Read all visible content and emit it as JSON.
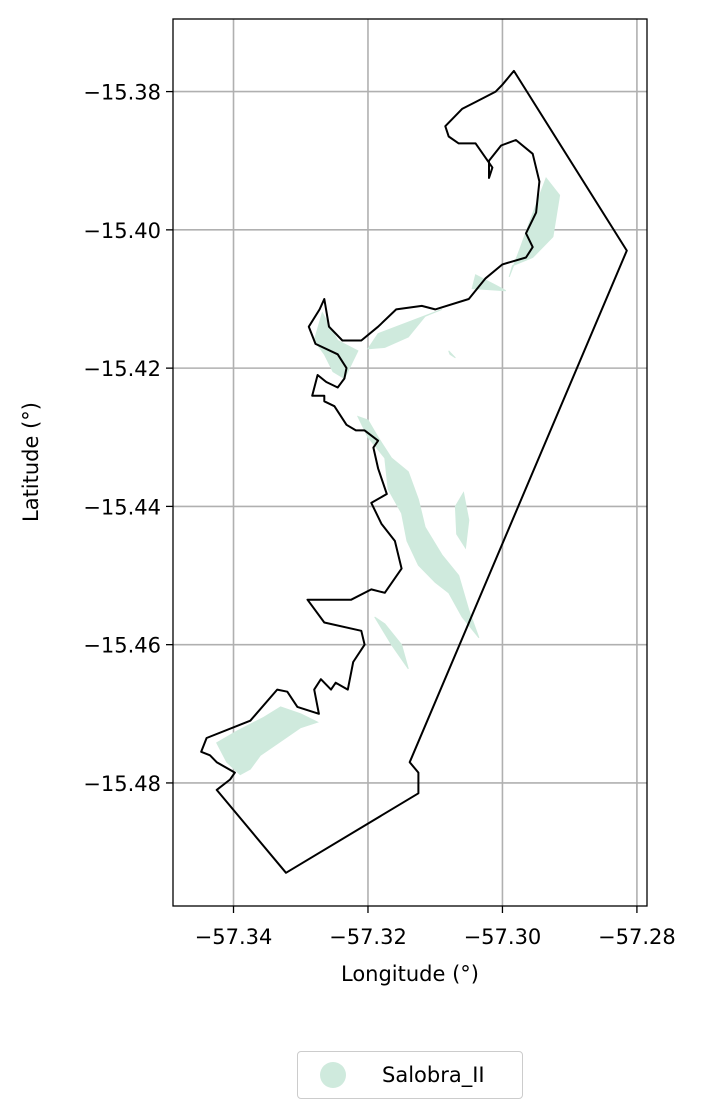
{
  "chart_data": {
    "type": "map",
    "xlabel": "Longitude (°)",
    "ylabel": "Latitude (°)",
    "xlim": [
      -57.349,
      -57.2785
    ],
    "ylim": [
      -15.4978,
      -15.3695
    ],
    "x_ticks": [
      -57.34,
      -57.32,
      -57.3,
      -57.28
    ],
    "x_tick_labels": [
      "−57.34",
      "−57.32",
      "−57.30",
      "−57.28"
    ],
    "y_ticks": [
      -15.38,
      -15.4,
      -15.42,
      -15.44,
      -15.46,
      -15.48
    ],
    "y_tick_labels": [
      "−15.38",
      "−15.40",
      "−15.42",
      "−15.44",
      "−15.46",
      "−15.48"
    ],
    "grid": true,
    "legend_placement": "bottom-center",
    "series": [
      {
        "name": "Salobra_II",
        "color": "#cfeadd",
        "kind": "polygon-fill"
      }
    ],
    "boundary_color": "#000000",
    "outline_polygon": [
      [
        -57.2983,
        -15.377
      ],
      [
        -57.2815,
        -15.403
      ],
      [
        -57.3138,
        -15.477
      ],
      [
        -57.3125,
        -15.4785
      ],
      [
        -57.3125,
        -15.4815
      ],
      [
        -57.3322,
        -15.493
      ],
      [
        -57.3425,
        -15.481
      ],
      [
        -57.3405,
        -15.4795
      ],
      [
        -57.3398,
        -15.4785
      ],
      [
        -57.3425,
        -15.477
      ],
      [
        -57.3435,
        -15.476
      ],
      [
        -57.3448,
        -15.4755
      ],
      [
        -57.344,
        -15.4735
      ],
      [
        -57.3375,
        -15.471
      ],
      [
        -57.3335,
        -15.4665
      ],
      [
        -57.332,
        -15.4668
      ],
      [
        -57.3305,
        -15.469
      ],
      [
        -57.3273,
        -15.47
      ],
      [
        -57.328,
        -15.4665
      ],
      [
        -57.327,
        -15.465
      ],
      [
        -57.3255,
        -15.4665
      ],
      [
        -57.3248,
        -15.4655
      ],
      [
        -57.323,
        -15.4665
      ],
      [
        -57.3222,
        -15.4625
      ],
      [
        -57.3205,
        -15.46
      ],
      [
        -57.321,
        -15.458
      ],
      [
        -57.3265,
        -15.4568
      ],
      [
        -57.329,
        -15.4535
      ],
      [
        -57.3225,
        -15.4535
      ],
      [
        -57.3195,
        -15.452
      ],
      [
        -57.3175,
        -15.4525
      ],
      [
        -57.315,
        -15.449
      ],
      [
        -57.316,
        -15.445
      ],
      [
        -57.318,
        -15.4425
      ],
      [
        -57.3195,
        -15.4395
      ],
      [
        -57.3172,
        -15.4382
      ],
      [
        -57.3185,
        -15.4345
      ],
      [
        -57.3192,
        -15.4315
      ],
      [
        -57.3185,
        -15.4305
      ],
      [
        -57.3205,
        -15.429
      ],
      [
        -57.3218,
        -15.429
      ],
      [
        -57.3232,
        -15.4282
      ],
      [
        -57.325,
        -15.4255
      ],
      [
        -57.3265,
        -15.4248
      ],
      [
        -57.3265,
        -15.424
      ],
      [
        -57.3283,
        -15.424
      ],
      [
        -57.3275,
        -15.421
      ],
      [
        -57.3262,
        -15.422
      ],
      [
        -57.3245,
        -15.4228
      ],
      [
        -57.3235,
        -15.4215
      ],
      [
        -57.3232,
        -15.42
      ],
      [
        -57.3245,
        -15.418
      ],
      [
        -57.3278,
        -15.4165
      ],
      [
        -57.3288,
        -15.414
      ],
      [
        -57.3272,
        -15.4115
      ],
      [
        -57.3265,
        -15.41
      ],
      [
        -57.3258,
        -15.414
      ],
      [
        -57.3238,
        -15.416
      ],
      [
        -57.321,
        -15.416
      ],
      [
        -57.3185,
        -15.414
      ],
      [
        -57.3158,
        -15.4115
      ],
      [
        -57.312,
        -15.411
      ],
      [
        -57.31,
        -15.4115
      ],
      [
        -57.305,
        -15.41
      ],
      [
        -57.3025,
        -15.407
      ],
      [
        -57.3,
        -15.405
      ],
      [
        -57.2965,
        -15.404
      ],
      [
        -57.2955,
        -15.4025
      ],
      [
        -57.2965,
        -15.4005
      ],
      [
        -57.295,
        -15.3975
      ],
      [
        -57.2945,
        -15.393
      ],
      [
        -57.2955,
        -15.389
      ],
      [
        -57.298,
        -15.387
      ],
      [
        -57.3002,
        -15.3878
      ],
      [
        -57.302,
        -15.39
      ],
      [
        -57.302,
        -15.3925
      ],
      [
        -57.3015,
        -15.391
      ],
      [
        -57.304,
        -15.3875
      ],
      [
        -57.3065,
        -15.3875
      ],
      [
        -57.308,
        -15.3865
      ],
      [
        -57.3085,
        -15.385
      ],
      [
        -57.306,
        -15.3825
      ],
      [
        -57.304,
        -15.3815
      ],
      [
        -57.301,
        -15.38
      ],
      [
        -57.3,
        -15.379
      ],
      [
        -57.2983,
        -15.377
      ]
    ],
    "filled_regions": [
      [
        [
          -57.2935,
          -15.3925
        ],
        [
          -57.2915,
          -15.395
        ],
        [
          -57.2925,
          -15.401
        ],
        [
          -57.2955,
          -15.404
        ],
        [
          -57.2985,
          -15.4052
        ],
        [
          -57.299,
          -15.4068
        ],
        [
          -57.2975,
          -15.403
        ],
        [
          -57.296,
          -15.399
        ]
      ],
      [
        [
          -57.304,
          -15.4065
        ],
        [
          -57.301,
          -15.408
        ],
        [
          -57.2995,
          -15.4088
        ],
        [
          -57.3045,
          -15.4085
        ]
      ],
      [
        [
          -57.309,
          -15.4115
        ],
        [
          -57.3115,
          -15.4125
        ],
        [
          -57.314,
          -15.4155
        ],
        [
          -57.3175,
          -15.417
        ],
        [
          -57.32,
          -15.4172
        ],
        [
          -57.3185,
          -15.415
        ]
      ],
      [
        [
          -57.3268,
          -15.412
        ],
        [
          -57.3245,
          -15.416
        ],
        [
          -57.3215,
          -15.4175
        ],
        [
          -57.3235,
          -15.4215
        ],
        [
          -57.3252,
          -15.4205
        ],
        [
          -57.3265,
          -15.418
        ],
        [
          -57.328,
          -15.416
        ]
      ],
      [
        [
          -57.3215,
          -15.427
        ],
        [
          -57.32,
          -15.43
        ],
        [
          -57.3175,
          -15.433
        ],
        [
          -57.317,
          -15.4375
        ],
        [
          -57.315,
          -15.441
        ],
        [
          -57.3142,
          -15.445
        ],
        [
          -57.3125,
          -15.4485
        ],
        [
          -57.31,
          -15.451
        ],
        [
          -57.308,
          -15.4525
        ],
        [
          -57.306,
          -15.456
        ],
        [
          -57.3035,
          -15.459
        ],
        [
          -57.305,
          -15.455
        ],
        [
          -57.3065,
          -15.45
        ],
        [
          -57.309,
          -15.447
        ],
        [
          -57.3115,
          -15.443
        ],
        [
          -57.3125,
          -15.439
        ],
        [
          -57.314,
          -15.435
        ],
        [
          -57.3165,
          -15.433
        ],
        [
          -57.3185,
          -15.43
        ],
        [
          -57.32,
          -15.4275
        ]
      ],
      [
        [
          -57.3058,
          -15.438
        ],
        [
          -57.305,
          -15.442
        ],
        [
          -57.3055,
          -15.446
        ],
        [
          -57.3068,
          -15.444
        ],
        [
          -57.307,
          -15.44
        ]
      ],
      [
        [
          -57.319,
          -15.456
        ],
        [
          -57.3165,
          -15.46
        ],
        [
          -57.314,
          -15.4635
        ],
        [
          -57.315,
          -15.46
        ],
        [
          -57.3175,
          -15.457
        ]
      ],
      [
        [
          -57.333,
          -15.469
        ],
        [
          -57.3355,
          -15.4705
        ],
        [
          -57.3395,
          -15.4725
        ],
        [
          -57.3425,
          -15.4742
        ],
        [
          -57.341,
          -15.477
        ],
        [
          -57.339,
          -15.4788
        ],
        [
          -57.3375,
          -15.478
        ],
        [
          -57.336,
          -15.476
        ],
        [
          -57.333,
          -15.474
        ],
        [
          -57.33,
          -15.472
        ],
        [
          -57.3275,
          -15.4712
        ],
        [
          -57.33,
          -15.47
        ]
      ],
      [
        [
          -57.308,
          -15.4175
        ],
        [
          -57.307,
          -15.4185
        ],
        [
          -57.3078,
          -15.418
        ]
      ]
    ]
  }
}
